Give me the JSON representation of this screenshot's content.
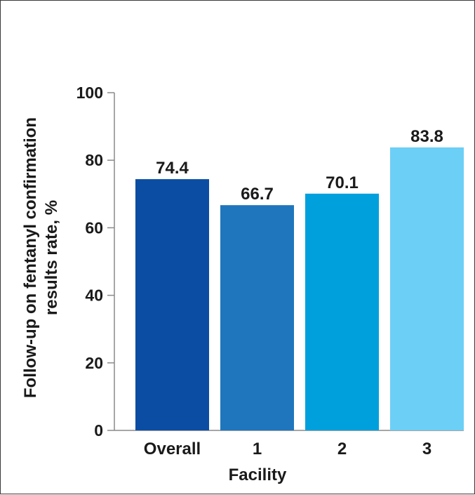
{
  "chart_data": {
    "type": "bar",
    "xlabel": "Facility",
    "ylabel_lines": [
      "Follow-up on fentanyl confirmation",
      "results rate, %"
    ],
    "ylim": [
      0,
      100
    ],
    "yticks": [
      0,
      20,
      40,
      60,
      80,
      100
    ],
    "categories": [
      "Overall",
      "1",
      "2",
      "3"
    ],
    "values": [
      74.4,
      66.7,
      70.1,
      83.8
    ],
    "value_labels": [
      "74.4",
      "66.7",
      "70.1",
      "83.8"
    ],
    "colors": [
      "#0b4da2",
      "#1f76bd",
      "#00a0dd",
      "#6ccff5"
    ],
    "grid": false,
    "legend": "none"
  }
}
